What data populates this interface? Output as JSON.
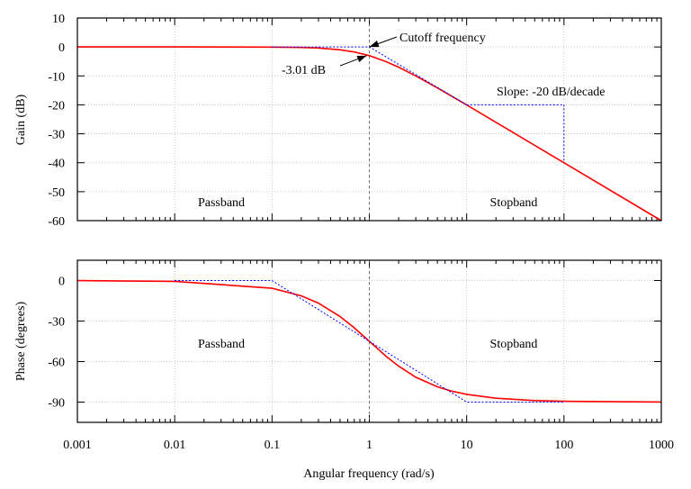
{
  "chart_data": [
    {
      "type": "line",
      "ylabel": "Gain (dB)",
      "xscale": "log",
      "xlim": [
        0.001,
        1000
      ],
      "ylim": [
        -60,
        10
      ],
      "yticks": [
        10,
        0,
        -10,
        -20,
        -30,
        -40,
        -50,
        -60
      ],
      "grid": true,
      "series": [
        {
          "color": "#ff0000",
          "style": "solid",
          "x": [
            0.001,
            0.01,
            0.1,
            0.2,
            0.3,
            0.5,
            0.7,
            1,
            1.5,
            2,
            3,
            5,
            7,
            10,
            20,
            50,
            100,
            1000
          ],
          "y": [
            0,
            0,
            -0.04,
            -0.17,
            -0.37,
            -0.97,
            -1.74,
            -3.01,
            -5.12,
            -6.99,
            -10,
            -14.15,
            -17.0,
            -20.04,
            -26.03,
            -33.98,
            -40,
            -60
          ]
        },
        {
          "color": "#0000ff",
          "style": "dashed",
          "x": [
            0.1,
            1,
            10
          ],
          "y": [
            0,
            0,
            -20
          ]
        },
        {
          "color": "#0000ff",
          "style": "dashed",
          "x": [
            10,
            100,
            100
          ],
          "y": [
            -20,
            -20,
            -40
          ]
        }
      ],
      "annotations": {
        "cutoff": "Cutoff frequency",
        "db": "-3.01 dB",
        "slope": "Slope: -20 dB/decade",
        "passband": "Passband",
        "stopband": "Stopband"
      }
    },
    {
      "type": "line",
      "ylabel": "Phase (degrees)",
      "xlabel": "Angular frequency (rad/s)",
      "xscale": "log",
      "xlim": [
        0.001,
        1000
      ],
      "ylim": [
        -105,
        15
      ],
      "yticks": [
        0,
        -30,
        -60,
        -90
      ],
      "xticks": [
        "0.001",
        "0.01",
        "0.1",
        "1",
        "10",
        "100",
        "1000"
      ],
      "grid": true,
      "series": [
        {
          "color": "#ff0000",
          "style": "solid",
          "x": [
            0.001,
            0.01,
            0.1,
            0.2,
            0.3,
            0.5,
            0.7,
            1,
            1.5,
            2,
            3,
            5,
            7,
            10,
            20,
            50,
            100,
            1000
          ],
          "y": [
            -0.06,
            -0.57,
            -5.71,
            -11.31,
            -16.7,
            -26.57,
            -34.99,
            -45,
            -56.31,
            -63.43,
            -71.57,
            -78.69,
            -81.87,
            -84.29,
            -87.14,
            -88.85,
            -89.43,
            -89.94
          ]
        },
        {
          "color": "#0000ff",
          "style": "dashed",
          "x": [
            0.01,
            0.1,
            10,
            100
          ],
          "y": [
            0,
            0,
            -90,
            -90
          ]
        }
      ],
      "annotations": {
        "passband": "Passband",
        "stopband": "Stopband"
      }
    }
  ]
}
